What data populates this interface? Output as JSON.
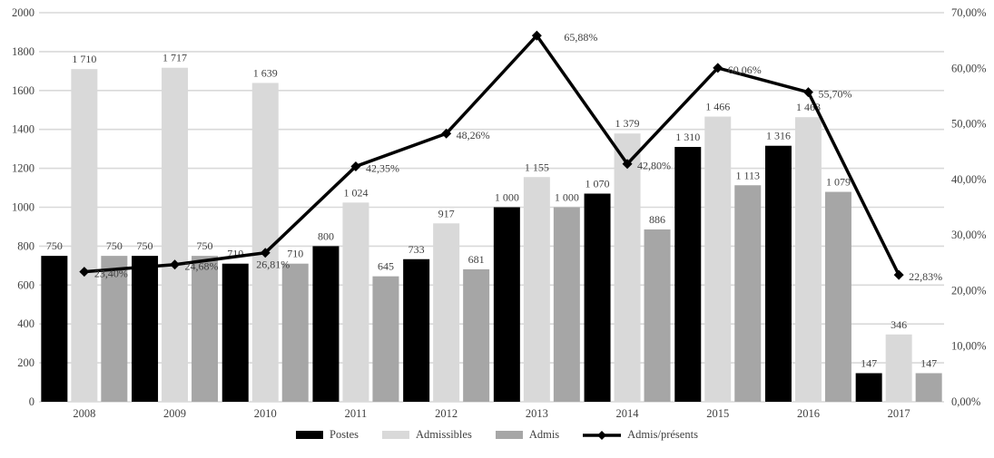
{
  "chart_data": {
    "type": "bar",
    "title": "",
    "categories": [
      "2008",
      "2009",
      "2010",
      "2011",
      "2012",
      "2013",
      "2014",
      "2015",
      "2016",
      "2017"
    ],
    "series": [
      {
        "name": "Postes",
        "kind": "bar",
        "color": "#000000",
        "axis": "left",
        "values": [
          750,
          750,
          710,
          800,
          733,
          1000,
          1070,
          1310,
          1316,
          147
        ],
        "labels": [
          "750",
          "750",
          "710",
          "800",
          "733",
          "1 000",
          "1 070",
          "1 310",
          "1 316",
          "147"
        ]
      },
      {
        "name": "Admissibles",
        "kind": "bar",
        "color": "#d9d9d9",
        "axis": "left",
        "values": [
          1710,
          1717,
          1639,
          1024,
          917,
          1155,
          1379,
          1466,
          1463,
          346
        ],
        "labels": [
          "1 710",
          "1 717",
          "1 639",
          "1 024",
          "917",
          "1 155",
          "1 379",
          "1 466",
          "1 463",
          "346"
        ]
      },
      {
        "name": "Admis",
        "kind": "bar",
        "color": "#a6a6a6",
        "axis": "left",
        "values": [
          750,
          750,
          710,
          645,
          681,
          1000,
          886,
          1113,
          1079,
          147
        ],
        "labels": [
          "750",
          "750",
          "710",
          "645",
          "681",
          "1 000",
          "886",
          "1 113",
          "1 079",
          "147"
        ]
      },
      {
        "name": "Admis/présents",
        "kind": "line",
        "color": "#000000",
        "axis": "right",
        "values": [
          23.4,
          24.68,
          26.81,
          42.35,
          48.26,
          65.88,
          42.8,
          60.06,
          55.7,
          22.83
        ],
        "labels": [
          "23,40%",
          "24,68%",
          "26,81%",
          "42,35%",
          "48,26%",
          "65,88%",
          "42,80%",
          "60,06%",
          "55,70%",
          "22,83%"
        ]
      }
    ],
    "left_axis": {
      "min": 0,
      "max": 2000,
      "step": 200,
      "tick_labels": [
        "0",
        "200",
        "400",
        "600",
        "800",
        "1000",
        "1200",
        "1400",
        "1600",
        "1800",
        "2000"
      ]
    },
    "right_axis": {
      "min": 0,
      "max": 70,
      "step": 10,
      "tick_labels": [
        "0,00%",
        "10,00%",
        "20,00%",
        "30,00%",
        "40,00%",
        "50,00%",
        "60,00%",
        "70,00%"
      ]
    },
    "grid": true,
    "legend_position": "bottom",
    "colors": {
      "text": "#404040",
      "grid": "#d9d9d9",
      "background": "#ffffff"
    }
  }
}
